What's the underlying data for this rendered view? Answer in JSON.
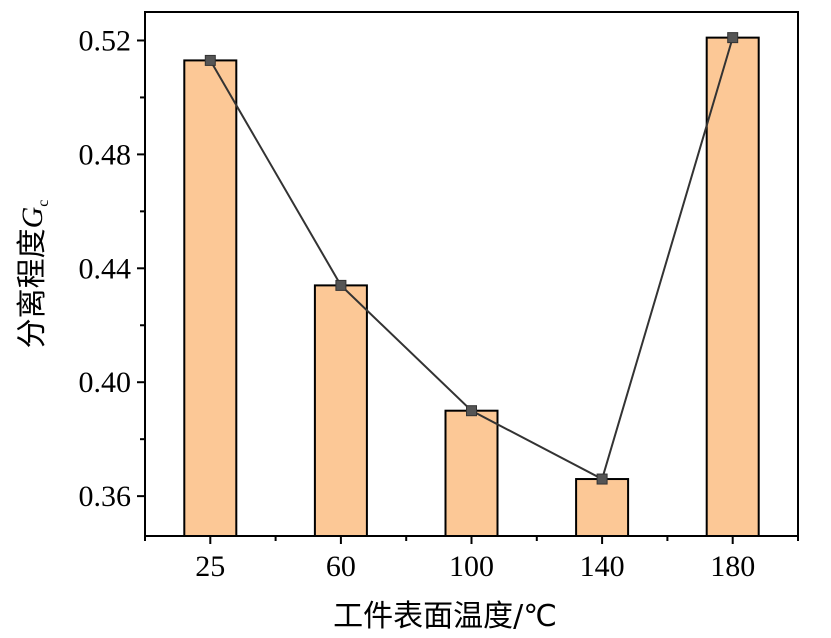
{
  "chart_data": {
    "type": "bar",
    "categories": [
      "25",
      "60",
      "100",
      "140",
      "180"
    ],
    "values": [
      0.513,
      0.434,
      0.39,
      0.366,
      0.521
    ],
    "line_overlay": true,
    "xlabel": "工件表面温度/℃",
    "ylabel_text": "分离程度",
    "ylabel_symbol": "G",
    "ylabel_subscript": "c",
    "ylim": [
      0.346,
      0.53
    ],
    "yticks": [
      0.36,
      0.4,
      0.44,
      0.48,
      0.52
    ],
    "ytick_labels": [
      "0.36",
      "0.40",
      "0.44",
      "0.48",
      "0.52"
    ],
    "grid": false,
    "colors": {
      "bar_fill": "#fcc896",
      "bar_stroke": "#000000",
      "line": "#333333",
      "marker": "#555555"
    }
  }
}
